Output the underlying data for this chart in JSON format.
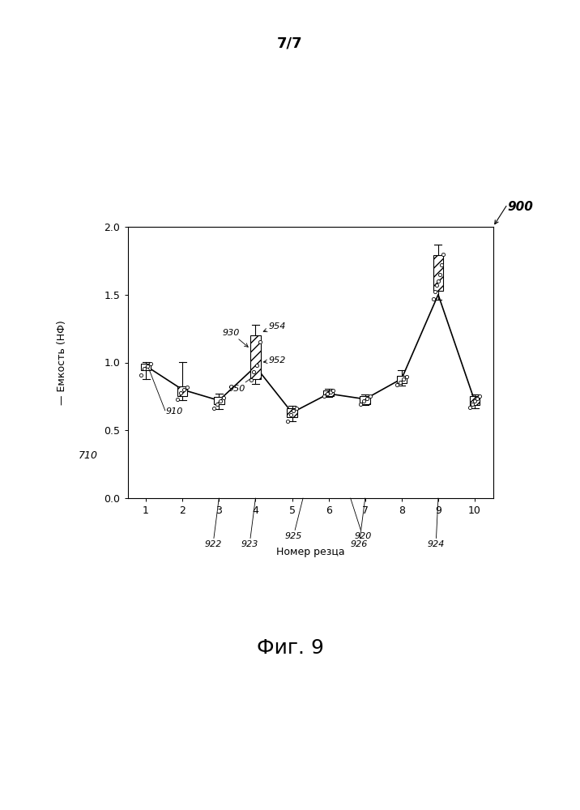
{
  "x_positions": [
    1,
    2,
    3,
    4,
    5,
    6,
    7,
    8,
    9,
    10
  ],
  "line_means": [
    0.975,
    0.8,
    0.72,
    0.97,
    0.63,
    0.77,
    0.73,
    0.88,
    1.5,
    0.715
  ],
  "box_bottoms": [
    0.945,
    0.755,
    0.69,
    0.88,
    0.595,
    0.755,
    0.695,
    0.845,
    1.53,
    0.685
  ],
  "box_tops": [
    0.99,
    0.825,
    0.745,
    1.2,
    0.665,
    0.795,
    0.755,
    0.9,
    1.79,
    0.755
  ],
  "whisker_lows": [
    0.88,
    0.72,
    0.655,
    0.84,
    0.565,
    0.745,
    0.685,
    0.83,
    1.46,
    0.665
  ],
  "whisker_highs": [
    1.005,
    1.005,
    0.77,
    1.28,
    0.68,
    0.805,
    0.765,
    0.945,
    1.87,
    0.765
  ],
  "scatter_points": [
    [
      0.91,
      0.955,
      0.975,
      0.99
    ],
    [
      0.73,
      0.775,
      0.8,
      0.82
    ],
    [
      0.665,
      0.695,
      0.715,
      0.74
    ],
    [
      0.87,
      0.93,
      0.98,
      1.15
    ],
    [
      0.57,
      0.615,
      0.645,
      0.66
    ],
    [
      0.755,
      0.77,
      0.78,
      0.795
    ],
    [
      0.695,
      0.715,
      0.735,
      0.755
    ],
    [
      0.835,
      0.855,
      0.875,
      0.895
    ],
    [
      1.47,
      1.52,
      1.57,
      1.6,
      1.65,
      1.72,
      1.8
    ],
    [
      0.67,
      0.69,
      0.715,
      0.735,
      0.75
    ]
  ],
  "xlabel": "Номер резца",
  "ylabel": "Емкость (НФ)",
  "ylim": [
    0.0,
    2.0
  ],
  "xlim": [
    0.5,
    10.5
  ],
  "yticks": [
    0.0,
    0.5,
    1.0,
    1.5,
    2.0
  ],
  "xticks": [
    1,
    2,
    3,
    4,
    5,
    6,
    7,
    8,
    9,
    10
  ],
  "page_label": "7/7",
  "fig_label": "Фиг. 9",
  "annot_900": "900",
  "annot_910": "910",
  "annot_920": "920",
  "annot_922": "922",
  "annot_923": "923",
  "annot_924": "924",
  "annot_925": "925",
  "annot_926": "926",
  "annot_930": "930",
  "annot_950": "950",
  "annot_952": "952",
  "annot_954": "954",
  "annot_710": "710",
  "box_hatch": "///",
  "box_facecolor": "white",
  "box_edgecolor": "black",
  "line_color": "black",
  "bg_color": "white"
}
